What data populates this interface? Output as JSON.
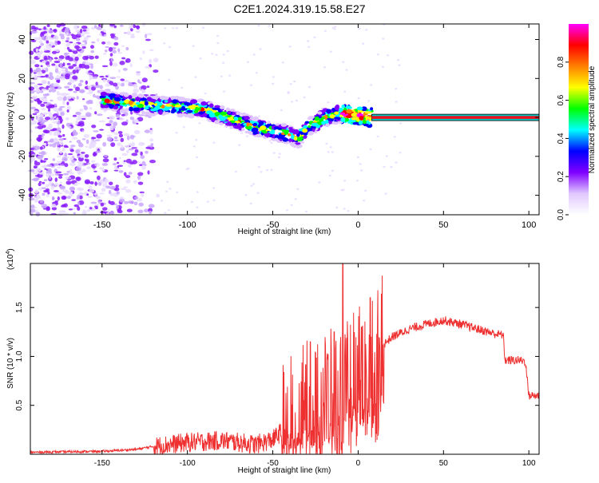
{
  "title": "C2E1.2024.319.15.58.E27",
  "chart_data": [
    {
      "type": "heatmap",
      "xlabel": "Height of straight line (km)",
      "ylabel": "Frequency (Hz)",
      "xlim": [
        -192,
        106
      ],
      "ylim": [
        -50,
        48
      ],
      "xticks": [
        -150,
        -100,
        -50,
        0,
        50,
        100
      ],
      "yticks": [
        -40,
        -20,
        0,
        20,
        40
      ],
      "colorbar": {
        "label": "Normalized spectral amplitude",
        "range": [
          0,
          1
        ],
        "ticks": [
          0.0,
          0.2,
          0.4,
          0.6,
          0.8
        ],
        "colormap": [
          "#ffffff",
          "#e0c8ff",
          "#8000ff",
          "#0000ff",
          "#00ffff",
          "#00ff00",
          "#ffff00",
          "#ff8000",
          "#ff0000",
          "#ff00ff"
        ]
      },
      "ridge": {
        "x": [
          -150,
          -140,
          -130,
          -120,
          -110,
          -100,
          -90,
          -80,
          -70,
          -60,
          -50,
          -40,
          -35,
          -30,
          -25,
          -20,
          -10,
          0,
          8
        ],
        "y": [
          9,
          8,
          7,
          6,
          6,
          5,
          4,
          1,
          -2,
          -5,
          -7,
          -9,
          -11,
          -5,
          -3,
          0,
          2,
          1,
          0
        ]
      },
      "steady_line": {
        "x": [
          8,
          106
        ],
        "y": 0
      }
    },
    {
      "type": "line",
      "xlabel": "Height of straight line (km)",
      "ylabel": "SNR (10 * v/v)",
      "yunit": "(x10",
      "yunit_exp": "4",
      "yunit_close": ")",
      "xlim": [
        -192,
        106
      ],
      "ylim": [
        0,
        1.95
      ],
      "xticks": [
        -150,
        -100,
        -50,
        0,
        50,
        100
      ],
      "yticks": [
        0.5,
        1.0,
        1.5
      ],
      "color": "#ee3030",
      "envelope": {
        "x": [
          -192,
          -150,
          -130,
          -120,
          -110,
          -100,
          -90,
          -80,
          -70,
          -60,
          -50,
          -40,
          -30,
          -20,
          -10,
          -5,
          0,
          10,
          20,
          30,
          40,
          50,
          60,
          70,
          80,
          85,
          86,
          95,
          98,
          100,
          106
        ],
        "y": [
          0.02,
          0.03,
          0.05,
          0.08,
          0.1,
          0.12,
          0.13,
          0.14,
          0.12,
          0.1,
          0.15,
          0.3,
          0.45,
          0.55,
          0.6,
          0.7,
          0.85,
          1.05,
          1.2,
          1.28,
          1.33,
          1.37,
          1.33,
          1.28,
          1.23,
          1.22,
          0.96,
          0.96,
          0.95,
          0.6,
          0.6
        ]
      },
      "spikes": [
        {
          "x": -9,
          "y": 1.95
        },
        {
          "x": 7,
          "y": 1.6
        },
        {
          "x": -14,
          "y": 1.25
        },
        {
          "x": -28,
          "y": 1.15
        },
        {
          "x": 2,
          "y": 1.3
        }
      ]
    }
  ]
}
